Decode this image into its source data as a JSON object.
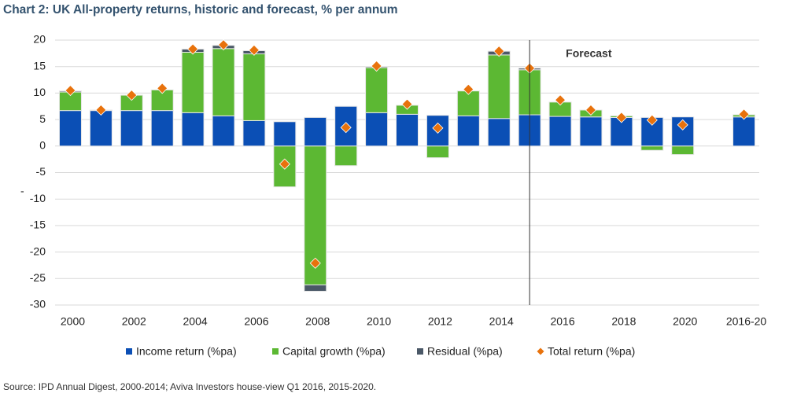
{
  "chart_data": {
    "type": "bar",
    "stacked": true,
    "title": "Chart 2: UK All-property returns, historic and forecast, % per annum",
    "ylabel": "-",
    "source": "Source: IPD Annual Digest, 2000-2014; Aviva Investors house-view Q1 2016, 2015-2020.",
    "categories": [
      "2000",
      null,
      "2002",
      null,
      "2004",
      null,
      "2006",
      null,
      "2008",
      null,
      "2010",
      null,
      "2012",
      null,
      "2014",
      null,
      "2016",
      null,
      "2018",
      null,
      "2020",
      null,
      "2016-20"
    ],
    "series": [
      {
        "name": "Income return (%pa)",
        "color": "#0b4fb5",
        "values": [
          6.7,
          6.7,
          6.7,
          6.7,
          6.3,
          5.7,
          4.8,
          4.6,
          5.4,
          7.5,
          6.3,
          6.0,
          5.8,
          5.7,
          5.2,
          5.9,
          5.6,
          5.5,
          5.4,
          5.4,
          5.5,
          null,
          5.5
        ]
      },
      {
        "name": "Capital growth (%pa)",
        "color": "#5cb833",
        "values": [
          3.5,
          0.1,
          2.9,
          3.9,
          11.4,
          12.7,
          12.6,
          -7.7,
          -26.2,
          -3.7,
          8.5,
          1.7,
          -2.2,
          4.7,
          12.0,
          8.5,
          2.7,
          1.3,
          0.3,
          -0.8,
          -1.6,
          null,
          0.4
        ]
      },
      {
        "name": "Residual (%pa)",
        "color": "#4a5867",
        "values": [
          0.2,
          null,
          null,
          null,
          0.6,
          0.6,
          0.6,
          null,
          -1.2,
          null,
          0.2,
          null,
          null,
          null,
          0.7,
          0.3,
          null,
          null,
          null,
          null,
          null,
          null,
          null
        ]
      },
      {
        "name": "Total return (%pa)",
        "color": "#e8720c",
        "type": "scatter",
        "values": [
          10.5,
          6.8,
          9.6,
          10.9,
          18.3,
          19.1,
          18.1,
          -3.4,
          -22.1,
          3.5,
          15.1,
          7.9,
          3.4,
          10.7,
          17.9,
          14.7,
          8.7,
          6.8,
          5.4,
          4.9,
          4.0,
          null,
          6.0
        ]
      }
    ],
    "annotations": [
      {
        "text": "Forecast",
        "x": 15.5
      }
    ],
    "ylim": [
      -30,
      20
    ],
    "yticks": [
      -30,
      -25,
      -20,
      -15,
      -10,
      -5,
      0,
      5,
      10,
      15,
      20
    ],
    "grid": true,
    "legend": "bottom"
  }
}
